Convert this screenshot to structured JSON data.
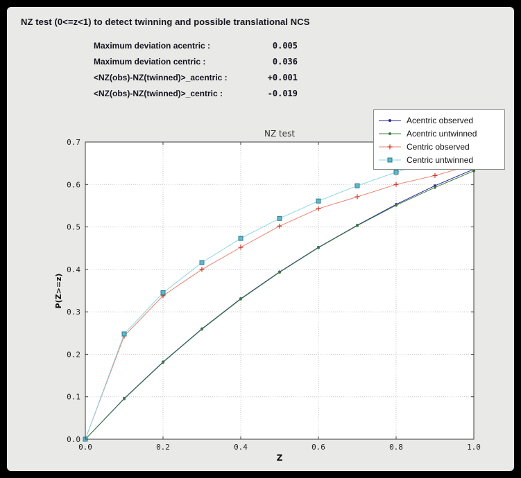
{
  "window": {
    "title": "NZ test (0<=z<1) to detect twinning and possible translational NCS",
    "background": "#e9e9e7"
  },
  "stats": [
    {
      "label": "Maximum deviation acentric :",
      "value": "0.005"
    },
    {
      "label": "Maximum deviation centric :",
      "value": "0.036"
    },
    {
      "label": "<NZ(obs)-NZ(twinned)>_acentric :",
      "value": "+0.001"
    },
    {
      "label": "<NZ(obs)-NZ(twinned)>_centric :",
      "value": "-0.019"
    }
  ],
  "chart_data": {
    "type": "line",
    "title": "NZ test",
    "xlabel": "Z",
    "ylabel": "P(Z>=z)",
    "xlim": [
      0.0,
      1.0
    ],
    "ylim": [
      0.0,
      0.7
    ],
    "xticks": [
      0.0,
      0.2,
      0.4,
      0.6,
      0.8,
      1.0
    ],
    "yticks": [
      0.0,
      0.1,
      0.2,
      0.3,
      0.4,
      0.5,
      0.6,
      0.7
    ],
    "grid": true,
    "grid_style": "dotted",
    "grid_color": "#c6c6c6",
    "frame_color": "#3c3c3c",
    "plot_background": "#ffffff",
    "legend_position": "upper right",
    "x": [
      0.0,
      0.1,
      0.2,
      0.3,
      0.4,
      0.5,
      0.6,
      0.7,
      0.8,
      0.9,
      1.0
    ],
    "series": [
      {
        "name": "Acentric observed",
        "line_color": "#26269a",
        "marker": "dot",
        "marker_color": "#26269a",
        "values": [
          0.0,
          0.096,
          0.182,
          0.26,
          0.331,
          0.394,
          0.452,
          0.504,
          0.553,
          0.597,
          0.636
        ]
      },
      {
        "name": "Acentric untwinned",
        "line_color": "#3f7f3f",
        "marker": "dot",
        "marker_color": "#3f7f3f",
        "values": [
          0.0,
          0.095,
          0.181,
          0.259,
          0.33,
          0.393,
          0.451,
          0.503,
          0.551,
          0.593,
          0.632
        ]
      },
      {
        "name": "Centric observed",
        "line_color": "#e8816f",
        "marker": "plus",
        "marker_color": "#d03425",
        "values": [
          0.0,
          0.243,
          0.338,
          0.4,
          0.452,
          0.502,
          0.543,
          0.571,
          0.6,
          0.621,
          0.647
        ]
      },
      {
        "name": "Centric untwinned",
        "line_color": "#8ed6e4",
        "marker": "square",
        "marker_color": "#62b8c6",
        "marker_edge": "#2f7f8e",
        "values": [
          0.0,
          0.248,
          0.345,
          0.416,
          0.473,
          0.52,
          0.561,
          0.597,
          0.629,
          0.657,
          0.683
        ]
      }
    ]
  }
}
